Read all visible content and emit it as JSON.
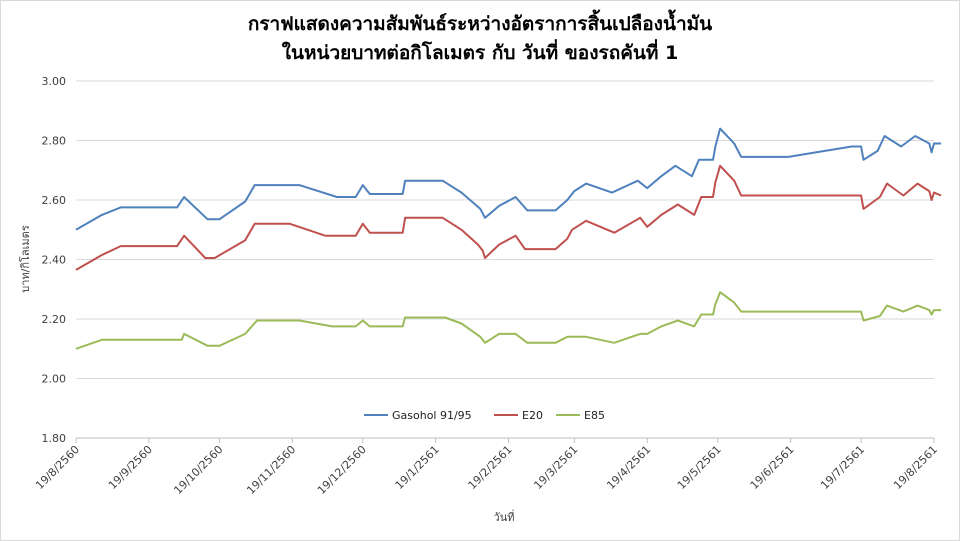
{
  "chart_data": {
    "type": "line",
    "title_line1": "กราฟแสดงความสัมพันธ์ระหว่างอัตราการสิ้นเปลืองน้ำมัน",
    "title_line2": "ในหน่วยบาทต่อกิโลเมตร  กับ วันที่  ของรถคันที่ 1",
    "xlabel": "วันที่",
    "ylabel": "บาท/กิโลเมตร",
    "ylim": [
      1.8,
      3.0
    ],
    "yticks": [
      "1.80",
      "2.00",
      "2.20",
      "2.40",
      "2.60",
      "2.80",
      "3.00"
    ],
    "xlim": [
      "19/8/2560",
      "19/8/2561"
    ],
    "xticks": [
      "19/8/2560",
      "19/9/2560",
      "19/10/2560",
      "19/11/2560",
      "19/12/2560",
      "19/1/2561",
      "19/2/2561",
      "19/3/2561",
      "19/4/2561",
      "19/5/2561",
      "19/6/2561",
      "19/7/2561",
      "19/8/2561"
    ],
    "grid": "horizontal",
    "legend_position": "bottom-inside",
    "series": [
      {
        "name": "Gasohol 91/95",
        "color": "#4f81bd",
        "points": [
          [
            "19/8/2560",
            2.5
          ],
          [
            "30/8/2560",
            2.55
          ],
          [
            "7/9/2560",
            2.575
          ],
          [
            "15/9/2560",
            2.575
          ],
          [
            "1/10/2560",
            2.575
          ],
          [
            "4/10/2560",
            2.61
          ],
          [
            "14/10/2560",
            2.535
          ],
          [
            "19/10/2560",
            2.535
          ],
          [
            "30/10/2560",
            2.595
          ],
          [
            "3/11/2560",
            2.65
          ],
          [
            "22/11/2560",
            2.65
          ],
          [
            "8/12/2560",
            2.61
          ],
          [
            "16/12/2560",
            2.61
          ],
          [
            "19/12/2560",
            2.65
          ],
          [
            "22/12/2560",
            2.62
          ],
          [
            "5/1/2561",
            2.62
          ],
          [
            "6/1/2561",
            2.665
          ],
          [
            "22/1/2561",
            2.665
          ],
          [
            "30/1/2561",
            2.625
          ],
          [
            "7/2/2561",
            2.57
          ],
          [
            "9/2/2561",
            2.54
          ],
          [
            "15/2/2561",
            2.58
          ],
          [
            "22/2/2561",
            2.61
          ],
          [
            "27/2/2561",
            2.565
          ],
          [
            "11/3/2561",
            2.565
          ],
          [
            "16/3/2561",
            2.6
          ],
          [
            "19/3/2561",
            2.63
          ],
          [
            "24/3/2561",
            2.655
          ],
          [
            "4/4/2561",
            2.625
          ],
          [
            "15/4/2561",
            2.665
          ],
          [
            "19/4/2561",
            2.64
          ],
          [
            "25/4/2561",
            2.68
          ],
          [
            "1/5/2561",
            2.715
          ],
          [
            "8/5/2561",
            2.68
          ],
          [
            "11/5/2561",
            2.735
          ],
          [
            "17/5/2561",
            2.735
          ],
          [
            "18/5/2561",
            2.78
          ],
          [
            "20/5/2561",
            2.84
          ],
          [
            "26/5/2561",
            2.79
          ],
          [
            "29/5/2561",
            2.745
          ],
          [
            "18/6/2561",
            2.745
          ],
          [
            "15/7/2561",
            2.78
          ],
          [
            "19/7/2561",
            2.78
          ],
          [
            "20/7/2561",
            2.735
          ],
          [
            "26/7/2561",
            2.765
          ],
          [
            "29/7/2561",
            2.815
          ],
          [
            "5/8/2561",
            2.78
          ],
          [
            "11/8/2561",
            2.815
          ],
          [
            "17/8/2561",
            2.79
          ],
          [
            "18/8/2561",
            2.76
          ],
          [
            "19/8/2561",
            2.79
          ],
          [
            "22/8/2561",
            2.79
          ]
        ]
      },
      {
        "name": "E20",
        "color": "#c0504d",
        "points": [
          [
            "19/8/2560",
            2.365
          ],
          [
            "30/8/2560",
            2.415
          ],
          [
            "7/9/2560",
            2.445
          ],
          [
            "15/9/2560",
            2.445
          ],
          [
            "1/10/2560",
            2.445
          ],
          [
            "4/10/2560",
            2.48
          ],
          [
            "13/10/2560",
            2.405
          ],
          [
            "17/10/2560",
            2.405
          ],
          [
            "30/10/2560",
            2.465
          ],
          [
            "3/11/2560",
            2.52
          ],
          [
            "18/11/2560",
            2.52
          ],
          [
            "3/12/2560",
            2.48
          ],
          [
            "16/12/2560",
            2.48
          ],
          [
            "19/12/2560",
            2.52
          ],
          [
            "22/12/2560",
            2.49
          ],
          [
            "5/1/2561",
            2.49
          ],
          [
            "6/1/2561",
            2.54
          ],
          [
            "22/1/2561",
            2.54
          ],
          [
            "30/1/2561",
            2.5
          ],
          [
            "6/2/2561",
            2.45
          ],
          [
            "8/2/2561",
            2.43
          ],
          [
            "9/2/2561",
            2.405
          ],
          [
            "15/2/2561",
            2.45
          ],
          [
            "22/2/2561",
            2.48
          ],
          [
            "26/2/2561",
            2.435
          ],
          [
            "11/3/2561",
            2.435
          ],
          [
            "16/3/2561",
            2.47
          ],
          [
            "18/3/2561",
            2.5
          ],
          [
            "24/3/2561",
            2.53
          ],
          [
            "5/4/2561",
            2.49
          ],
          [
            "16/4/2561",
            2.54
          ],
          [
            "19/4/2561",
            2.51
          ],
          [
            "25/4/2561",
            2.55
          ],
          [
            "2/5/2561",
            2.585
          ],
          [
            "9/5/2561",
            2.55
          ],
          [
            "12/5/2561",
            2.61
          ],
          [
            "17/5/2561",
            2.61
          ],
          [
            "18/5/2561",
            2.66
          ],
          [
            "20/5/2561",
            2.715
          ],
          [
            "26/5/2561",
            2.665
          ],
          [
            "29/5/2561",
            2.615
          ],
          [
            "19/7/2561",
            2.615
          ],
          [
            "20/7/2561",
            2.57
          ],
          [
            "27/7/2561",
            2.61
          ],
          [
            "30/7/2561",
            2.655
          ],
          [
            "6/8/2561",
            2.615
          ],
          [
            "12/8/2561",
            2.655
          ],
          [
            "17/8/2561",
            2.63
          ],
          [
            "18/8/2561",
            2.6
          ],
          [
            "19/8/2561",
            2.625
          ],
          [
            "22/8/2561",
            2.615
          ]
        ]
      },
      {
        "name": "E85",
        "color": "#9bbb59",
        "points": [
          [
            "19/8/2560",
            2.1
          ],
          [
            "30/8/2560",
            2.13
          ],
          [
            "15/9/2560",
            2.13
          ],
          [
            "3/10/2560",
            2.13
          ],
          [
            "4/10/2560",
            2.15
          ],
          [
            "14/10/2560",
            2.11
          ],
          [
            "19/10/2560",
            2.11
          ],
          [
            "30/10/2560",
            2.15
          ],
          [
            "4/11/2560",
            2.195
          ],
          [
            "22/11/2560",
            2.195
          ],
          [
            "6/12/2560",
            2.175
          ],
          [
            "16/12/2560",
            2.175
          ],
          [
            "19/12/2560",
            2.195
          ],
          [
            "22/12/2560",
            2.175
          ],
          [
            "5/1/2561",
            2.175
          ],
          [
            "6/1/2561",
            2.205
          ],
          [
            "23/1/2561",
            2.205
          ],
          [
            "30/1/2561",
            2.185
          ],
          [
            "7/2/2561",
            2.14
          ],
          [
            "9/2/2561",
            2.12
          ],
          [
            "15/2/2561",
            2.15
          ],
          [
            "22/2/2561",
            2.15
          ],
          [
            "27/2/2561",
            2.12
          ],
          [
            "11/3/2561",
            2.12
          ],
          [
            "16/3/2561",
            2.14
          ],
          [
            "24/3/2561",
            2.14
          ],
          [
            "5/4/2561",
            2.12
          ],
          [
            "16/4/2561",
            2.15
          ],
          [
            "19/4/2561",
            2.15
          ],
          [
            "25/4/2561",
            2.175
          ],
          [
            "2/5/2561",
            2.195
          ],
          [
            "9/5/2561",
            2.175
          ],
          [
            "12/5/2561",
            2.215
          ],
          [
            "17/5/2561",
            2.215
          ],
          [
            "18/5/2561",
            2.25
          ],
          [
            "20/5/2561",
            2.29
          ],
          [
            "26/5/2561",
            2.255
          ],
          [
            "29/5/2561",
            2.225
          ],
          [
            "19/7/2561",
            2.225
          ],
          [
            "20/7/2561",
            2.195
          ],
          [
            "27/7/2561",
            2.21
          ],
          [
            "30/7/2561",
            2.245
          ],
          [
            "6/8/2561",
            2.225
          ],
          [
            "12/8/2561",
            2.245
          ],
          [
            "17/8/2561",
            2.23
          ],
          [
            "18/8/2561",
            2.215
          ],
          [
            "19/8/2561",
            2.23
          ],
          [
            "22/8/2561",
            2.23
          ]
        ]
      }
    ]
  }
}
